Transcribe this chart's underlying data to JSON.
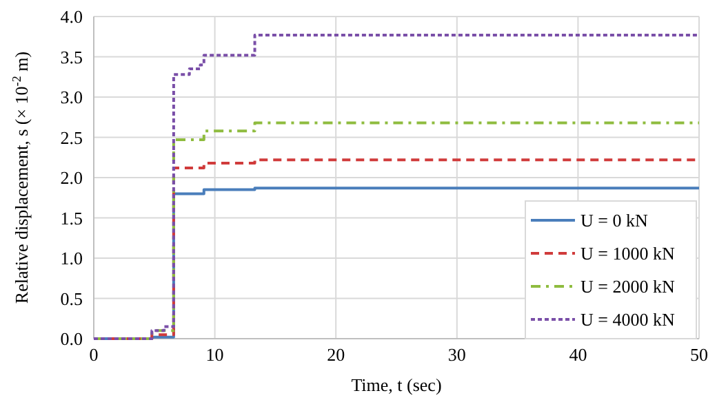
{
  "chart_data": {
    "type": "step",
    "xlabel": "Time, t (sec)",
    "ylabel": "Relative displacement, s  (× 10$^{-2}$ m)",
    "xlim": [
      0,
      50
    ],
    "ylim": [
      0,
      4
    ],
    "xticks": [
      0,
      10,
      20,
      30,
      40,
      50
    ],
    "yticks": [
      {
        "value": 0,
        "label": "0.0"
      },
      {
        "value": 0.5,
        "label": "0.5"
      },
      {
        "value": 1,
        "label": "1.0"
      },
      {
        "value": 1.5,
        "label": "1.5"
      },
      {
        "value": 2,
        "label": "2.0"
      },
      {
        "value": 2.5,
        "label": "2.5"
      },
      {
        "value": 3,
        "label": "3.0"
      },
      {
        "value": 3.5,
        "label": "3.5"
      },
      {
        "value": 4,
        "label": "4.0"
      }
    ],
    "grid": true,
    "legend": "bottom right",
    "series": [
      {
        "name": "U = 0 kN",
        "color": "#4a7ebb",
        "line_style": "solid",
        "x": [
          0,
          4.8,
          6.6,
          9.1,
          13.3,
          50
        ],
        "values": [
          0,
          0.02,
          1.8,
          1.85,
          1.87,
          1.87
        ]
      },
      {
        "name": "U = 1000 kN",
        "color": "#d03b3b",
        "line_style": "dashed",
        "x": [
          0,
          4.8,
          6.6,
          9.1,
          13.3,
          50
        ],
        "values": [
          0,
          0.05,
          2.12,
          2.18,
          2.22,
          2.22
        ]
      },
      {
        "name": "U = 2000 kN",
        "color": "#8fbc3f",
        "line_style": "dashdot",
        "x": [
          0,
          4.8,
          6.6,
          9.1,
          13.3,
          50
        ],
        "values": [
          0,
          0.1,
          2.47,
          2.58,
          2.68,
          2.68
        ]
      },
      {
        "name": "U = 4000 kN",
        "color": "#7a4fa8",
        "line_style": "dotted",
        "x": [
          0,
          4.8,
          5.8,
          6.6,
          7.9,
          8.8,
          9.1,
          13.3,
          50
        ],
        "values": [
          0,
          0.1,
          0.15,
          3.28,
          3.35,
          3.4,
          3.52,
          3.77,
          3.77
        ]
      }
    ]
  }
}
